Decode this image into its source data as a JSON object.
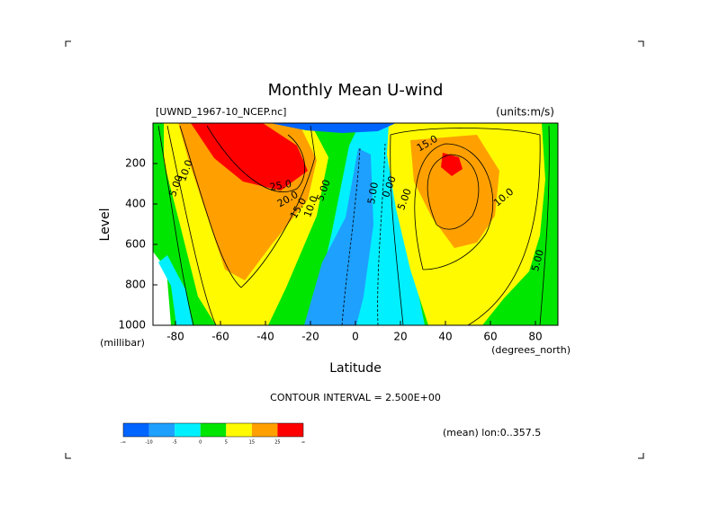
{
  "chart_data": {
    "type": "contour",
    "title": "Monthly Mean U-wind",
    "file_label": "[UWND_1967-10_NCEP.nc]",
    "units_label": "(units:m/s)",
    "y_label": "Level",
    "y_units": "(millibar)",
    "x_label": "Latitude",
    "x_units": "(degrees_north)",
    "contour_interval": "CONTOUR INTERVAL = 2.500E+00",
    "mean_note": "(mean) lon:0..357.5",
    "xlim": [
      -90,
      90
    ],
    "xticks": [
      -80,
      -60,
      -40,
      -20,
      0,
      20,
      40,
      60,
      80
    ],
    "ylim": [
      1000,
      0
    ],
    "yticks": [
      200,
      400,
      600,
      800,
      1000
    ],
    "contour_labels": [
      "10.0",
      "5.00",
      "25.0",
      "20.0",
      "15.0",
      "10.0",
      "5.00",
      "5.00",
      "0.00",
      "5.00",
      "15.0",
      "10.0",
      "5.00"
    ],
    "colorbar": {
      "colors": [
        "#0064ff",
        "#1ea0ff",
        "#00f0ff",
        "#00e600",
        "#fffa00",
        "#ffa000",
        "#ff0000"
      ],
      "ticks": [
        "-∞",
        -10,
        -5,
        0,
        5,
        15,
        25,
        "∞"
      ]
    }
  }
}
